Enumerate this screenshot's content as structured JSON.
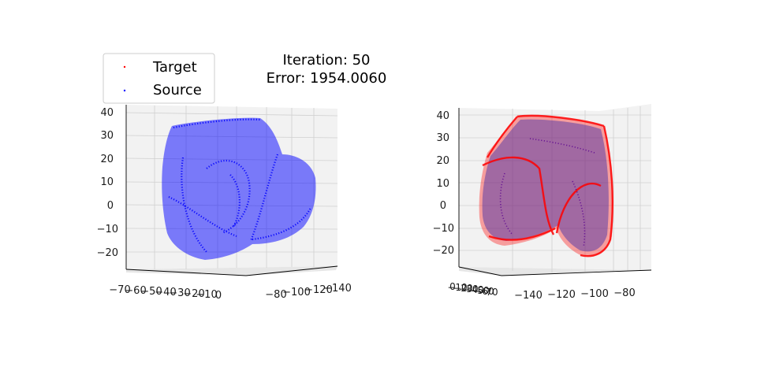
{
  "title_lines": [
    "Iteration: 50",
    "Error: 1954.0060"
  ],
  "legend": [
    {
      "label": "Target",
      "color": "#ff0000",
      "marker": "."
    },
    {
      "label": "Source",
      "color": "#0000ff",
      "marker": "."
    }
  ],
  "chart_data": [
    {
      "type": "scatter",
      "projection": "3d",
      "view": "left",
      "z_ticks": [
        "40",
        "30",
        "20",
        "10",
        "0",
        "−10",
        "−20"
      ],
      "x_ticks": [
        "−70",
        "−60",
        "−50",
        "−40",
        "−30",
        "−20",
        "−10",
        "0"
      ],
      "y_ticks": [
        "−80",
        "−100",
        "−120",
        "−140"
      ],
      "series": [
        {
          "name": "Target",
          "color": "#ff0000"
        },
        {
          "name": "Source",
          "color": "#0000ff"
        }
      ]
    },
    {
      "type": "scatter",
      "projection": "3d",
      "view": "right",
      "z_ticks": [
        "40",
        "30",
        "20",
        "10",
        "0",
        "−10",
        "−20"
      ],
      "x_ticks": [
        "0",
        "−10",
        "−20",
        "−30",
        "−40",
        "−50",
        "−60",
        "−70"
      ],
      "y_ticks": [
        "−140",
        "−120",
        "−100",
        "−80"
      ],
      "series": [
        {
          "name": "Target",
          "color": "#ff0000"
        },
        {
          "name": "Source",
          "color": "#0000ff"
        }
      ]
    }
  ]
}
